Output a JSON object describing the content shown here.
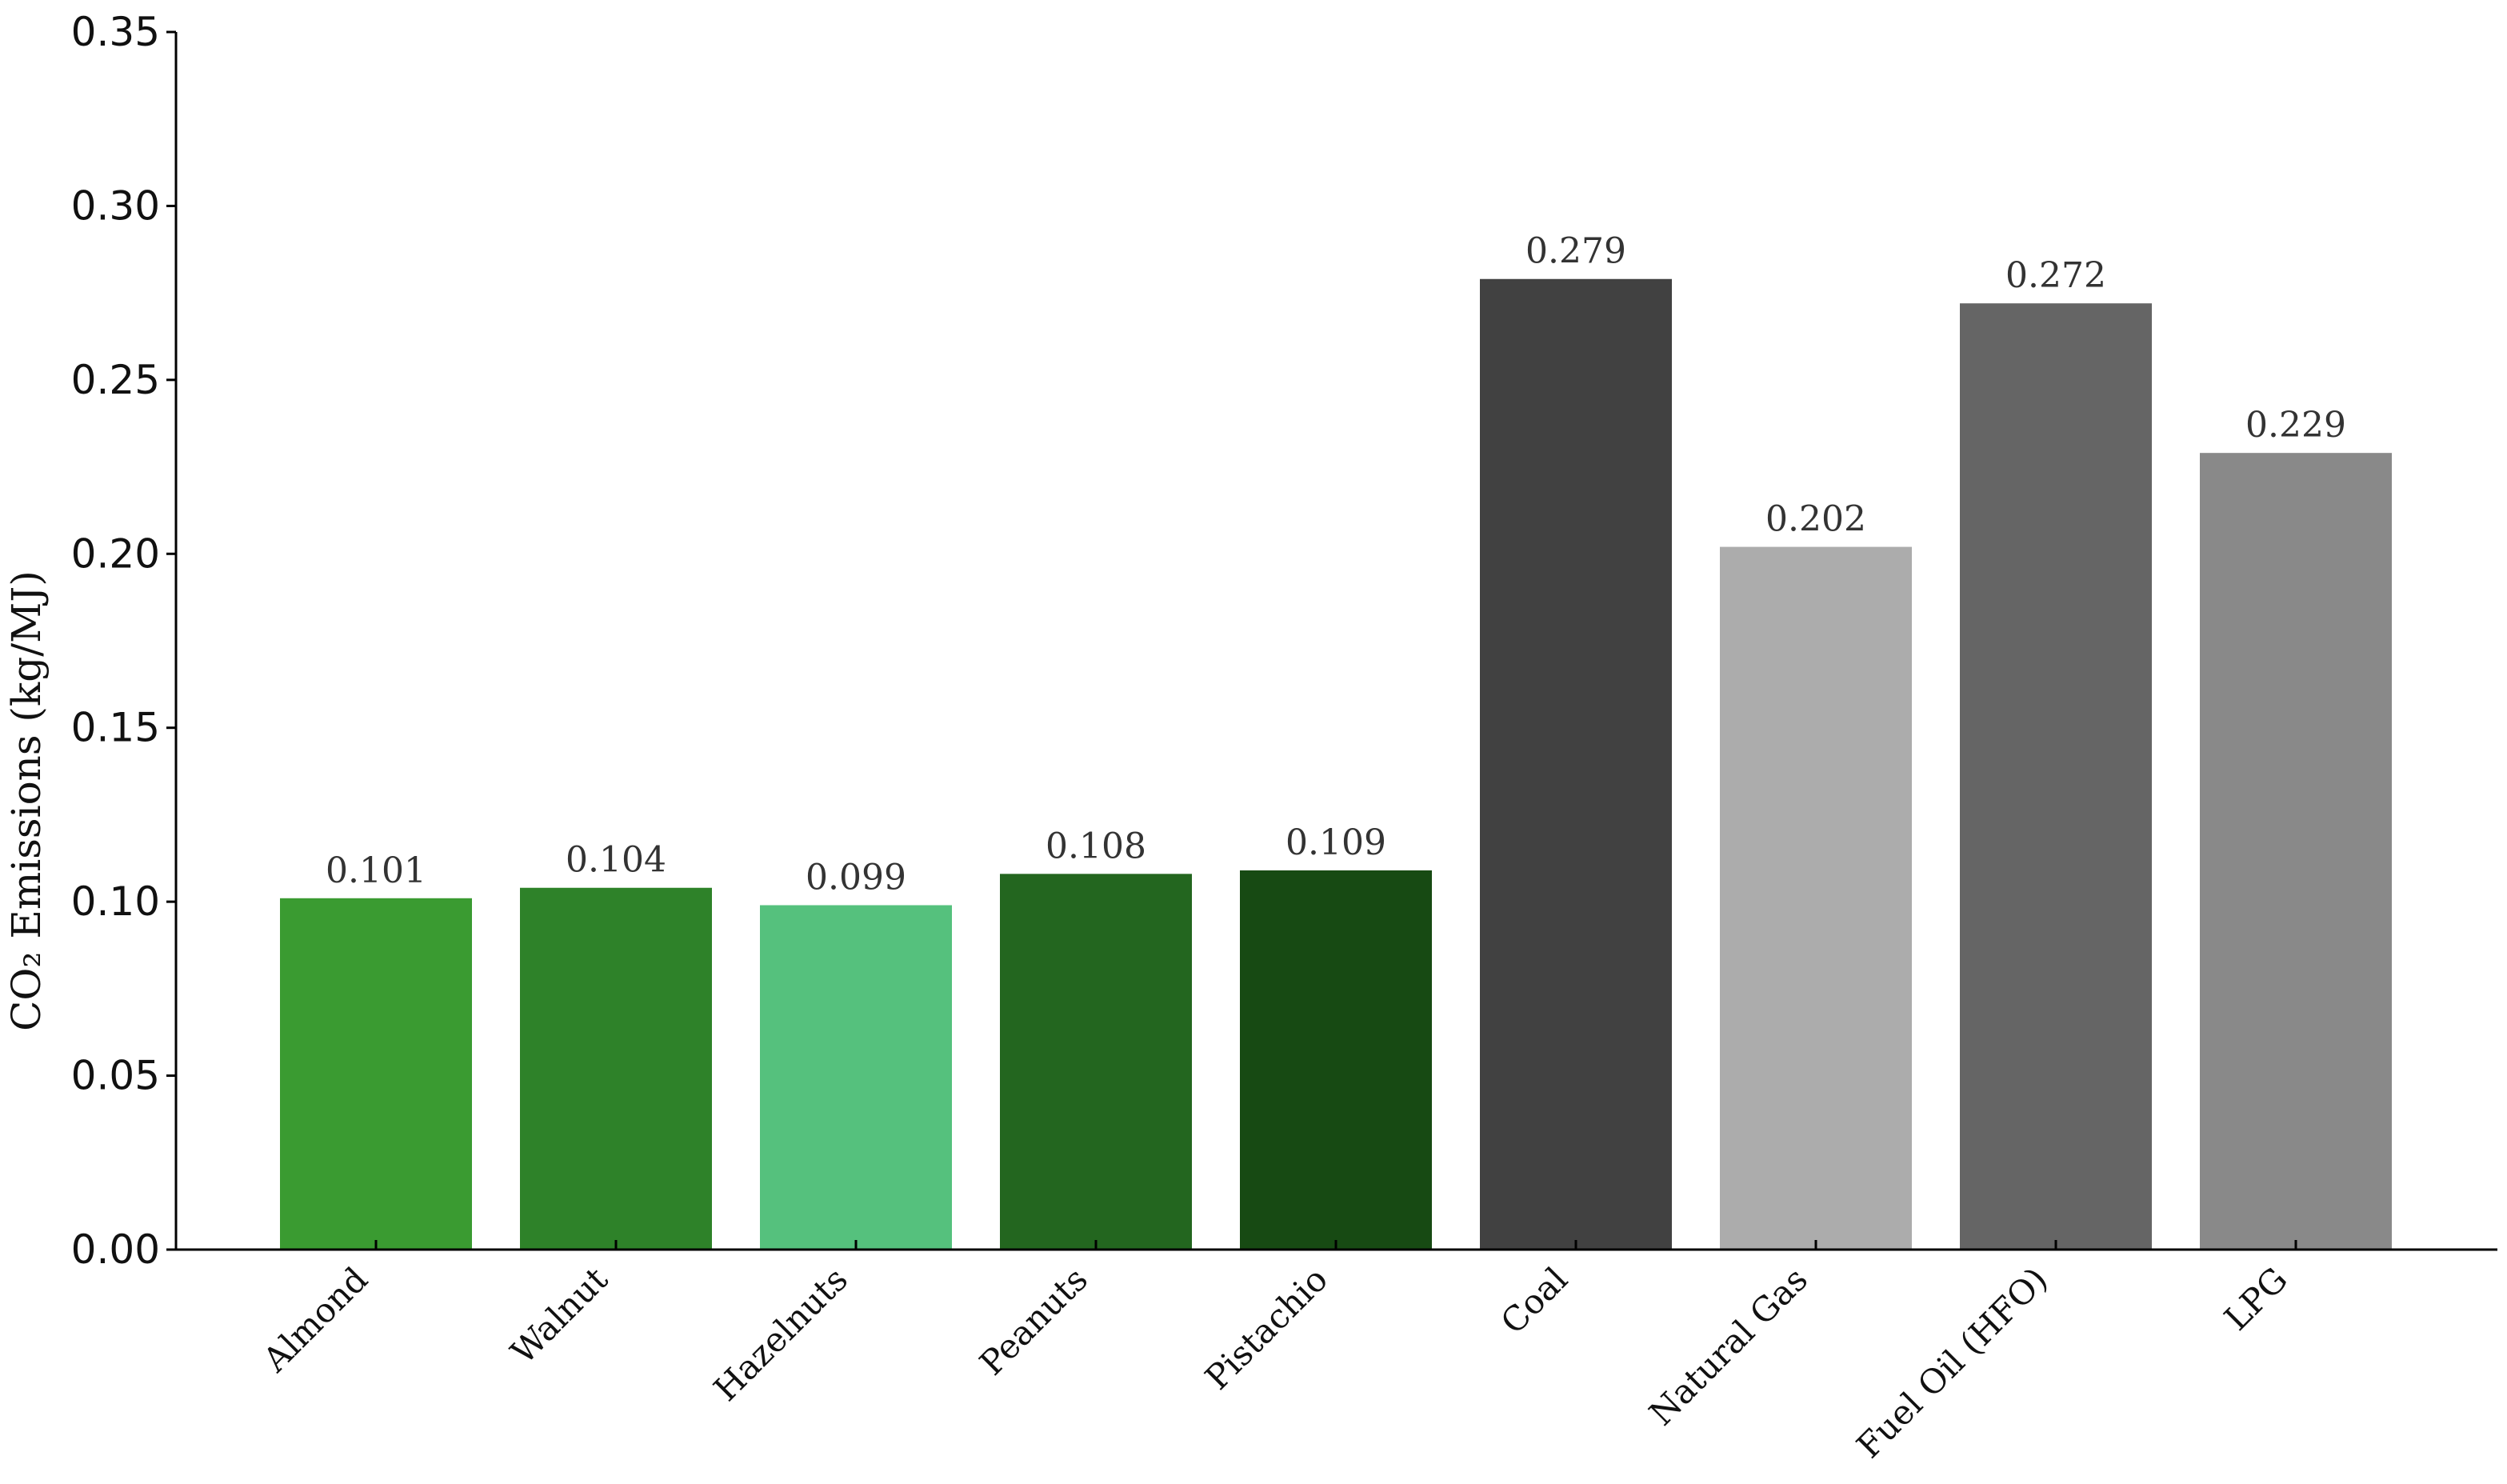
{
  "chart_data": {
    "type": "bar",
    "title": "",
    "xlabel": "",
    "ylabel": "CO₂ Emissions (kg/MJ)",
    "ylim": [
      0,
      0.35
    ],
    "yticks": [
      "0.00",
      "0.05",
      "0.10",
      "0.15",
      "0.20",
      "0.25",
      "0.30",
      "0.35"
    ],
    "ytick_values": [
      0,
      0.05,
      0.1,
      0.15,
      0.2,
      0.25,
      0.3,
      0.35
    ],
    "categories": [
      "Almond",
      "Walnut",
      "Hazelnuts",
      "Peanuts",
      "Pistachio",
      "Coal",
      "Natural Gas",
      "Fuel Oil (HFO)",
      "LPG"
    ],
    "values": [
      0.101,
      0.104,
      0.099,
      0.108,
      0.109,
      0.279,
      0.202,
      0.272,
      0.229
    ],
    "data_labels": [
      "0.101",
      "0.104",
      "0.099",
      "0.108",
      "0.109",
      "0.279",
      "0.202",
      "0.272",
      "0.229"
    ],
    "colors": [
      "#3a9b31",
      "#2e8229",
      "#55c17d",
      "#23661f",
      "#174a13",
      "#414141",
      "#acacac",
      "#656565",
      "#898989"
    ],
    "grid": false,
    "legend": "none"
  }
}
